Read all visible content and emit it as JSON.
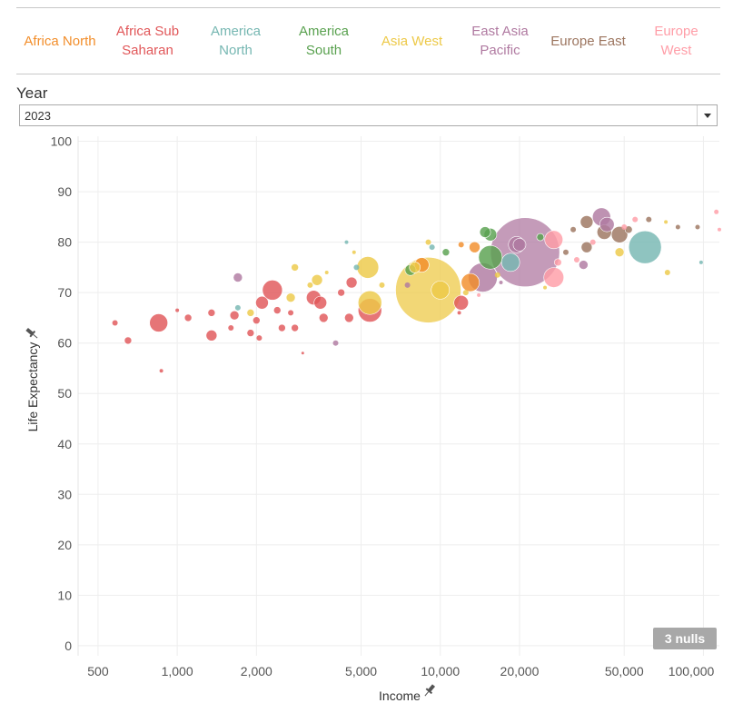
{
  "legend": {
    "items": [
      {
        "label": "Africa North",
        "color": "#f28e2b"
      },
      {
        "label": "Africa Sub Saharan",
        "color": "#e15759"
      },
      {
        "label": "America North",
        "color": "#76b7b2"
      },
      {
        "label": "America South",
        "color": "#59a14f"
      },
      {
        "label": "Asia West",
        "color": "#edc948"
      },
      {
        "label": "East Asia Pacific",
        "color": "#b07aa1"
      },
      {
        "label": "Europe East",
        "color": "#9c755f"
      },
      {
        "label": "Europe West",
        "color": "#ff9da7"
      }
    ]
  },
  "filter": {
    "label": "Year",
    "value": "2023"
  },
  "nulls_label": "3 nulls",
  "chart_data": {
    "type": "scatter",
    "xlabel": "Income",
    "ylabel": "Life Expectancy",
    "x_scale": "log",
    "xlim": [
      420,
      115000
    ],
    "ylim": [
      -2,
      101
    ],
    "x_ticks": [
      500,
      1000,
      2000,
      5000,
      10000,
      20000,
      50000,
      100000
    ],
    "x_tick_labels": [
      "500",
      "1,000",
      "2,000",
      "5,000",
      "10,000",
      "20,000",
      "50,000",
      "100,000"
    ],
    "y_ticks": [
      0,
      10,
      20,
      30,
      40,
      50,
      60,
      70,
      80,
      90,
      100
    ],
    "points": [
      {
        "x": 21000,
        "y": 78,
        "r": 38,
        "region": "East Asia Pacific"
      },
      {
        "x": 9000,
        "y": 70.5,
        "r": 36,
        "region": "Asia West"
      },
      {
        "x": 60000,
        "y": 79,
        "r": 18,
        "region": "America North"
      },
      {
        "x": 14500,
        "y": 73,
        "r": 16,
        "region": "East Asia Pacific"
      },
      {
        "x": 15500,
        "y": 77,
        "r": 13,
        "region": "America South"
      },
      {
        "x": 5400,
        "y": 66.5,
        "r": 13,
        "region": "Africa Sub Saharan"
      },
      {
        "x": 5400,
        "y": 68,
        "r": 13,
        "region": "Asia West"
      },
      {
        "x": 5300,
        "y": 75,
        "r": 12,
        "region": "Asia West"
      },
      {
        "x": 2300,
        "y": 70.5,
        "r": 11,
        "region": "Africa Sub Saharan"
      },
      {
        "x": 27000,
        "y": 73,
        "r": 11,
        "region": "Europe West"
      },
      {
        "x": 10000,
        "y": 70.5,
        "r": 10,
        "region": "Asia West"
      },
      {
        "x": 13000,
        "y": 72,
        "r": 10,
        "region": "Africa North"
      },
      {
        "x": 850,
        "y": 64,
        "r": 10,
        "region": "Africa Sub Saharan"
      },
      {
        "x": 41000,
        "y": 85,
        "r": 10,
        "region": "East Asia Pacific"
      },
      {
        "x": 27000,
        "y": 80.5,
        "r": 10,
        "region": "Europe West"
      },
      {
        "x": 18500,
        "y": 76,
        "r": 10,
        "region": "America North"
      },
      {
        "x": 19500,
        "y": 79.5,
        "r": 9,
        "region": "East Asia Pacific"
      },
      {
        "x": 48000,
        "y": 81.5,
        "r": 9,
        "region": "Europe East"
      },
      {
        "x": 3300,
        "y": 69,
        "r": 8,
        "region": "Africa Sub Saharan"
      },
      {
        "x": 3500,
        "y": 68,
        "r": 7,
        "region": "Africa Sub Saharan"
      },
      {
        "x": 12000,
        "y": 68,
        "r": 8,
        "region": "Africa Sub Saharan"
      },
      {
        "x": 2100,
        "y": 68,
        "r": 7,
        "region": "Africa Sub Saharan"
      },
      {
        "x": 8500,
        "y": 75.5,
        "r": 8,
        "region": "Africa North"
      },
      {
        "x": 42000,
        "y": 82,
        "r": 8,
        "region": "Europe East"
      },
      {
        "x": 43000,
        "y": 83.5,
        "r": 8,
        "region": "East Asia Pacific"
      },
      {
        "x": 36000,
        "y": 84,
        "r": 7,
        "region": "Europe East"
      },
      {
        "x": 36000,
        "y": 79,
        "r": 6,
        "region": "Europe East"
      },
      {
        "x": 20000,
        "y": 79.5,
        "r": 7,
        "region": "East Asia Pacific"
      },
      {
        "x": 15500,
        "y": 81.5,
        "r": 7,
        "region": "America South"
      },
      {
        "x": 14800,
        "y": 82,
        "r": 6,
        "region": "America South"
      },
      {
        "x": 7700,
        "y": 74.5,
        "r": 6,
        "region": "America South"
      },
      {
        "x": 8000,
        "y": 75,
        "r": 6,
        "region": "Asia West"
      },
      {
        "x": 4600,
        "y": 72,
        "r": 6,
        "region": "Africa Sub Saharan"
      },
      {
        "x": 3400,
        "y": 72.5,
        "r": 6,
        "region": "Asia West"
      },
      {
        "x": 1350,
        "y": 61.5,
        "r": 6,
        "region": "Africa Sub Saharan"
      },
      {
        "x": 4500,
        "y": 65,
        "r": 5,
        "region": "Africa Sub Saharan"
      },
      {
        "x": 3600,
        "y": 65,
        "r": 5,
        "region": "Africa Sub Saharan"
      },
      {
        "x": 2700,
        "y": 69,
        "r": 5,
        "region": "Asia West"
      },
      {
        "x": 2400,
        "y": 66.5,
        "r": 4,
        "region": "Africa Sub Saharan"
      },
      {
        "x": 2000,
        "y": 64.5,
        "r": 4,
        "region": "Africa Sub Saharan"
      },
      {
        "x": 1900,
        "y": 66,
        "r": 4,
        "region": "Asia West"
      },
      {
        "x": 1700,
        "y": 73,
        "r": 5,
        "region": "East Asia Pacific"
      },
      {
        "x": 1650,
        "y": 65.5,
        "r": 5,
        "region": "Africa Sub Saharan"
      },
      {
        "x": 1100,
        "y": 65,
        "r": 4,
        "region": "Africa Sub Saharan"
      },
      {
        "x": 650,
        "y": 60.5,
        "r": 4,
        "region": "Africa Sub Saharan"
      },
      {
        "x": 580,
        "y": 64,
        "r": 3,
        "region": "Africa Sub Saharan"
      },
      {
        "x": 870,
        "y": 54.5,
        "r": 2,
        "region": "Africa Sub Saharan"
      },
      {
        "x": 1000,
        "y": 66.5,
        "r": 2,
        "region": "Africa Sub Saharan"
      },
      {
        "x": 1350,
        "y": 66,
        "r": 4,
        "region": "Africa Sub Saharan"
      },
      {
        "x": 2050,
        "y": 61,
        "r": 3,
        "region": "Africa Sub Saharan"
      },
      {
        "x": 2500,
        "y": 63,
        "r": 4,
        "region": "Africa Sub Saharan"
      },
      {
        "x": 2800,
        "y": 63,
        "r": 4,
        "region": "Africa Sub Saharan"
      },
      {
        "x": 1600,
        "y": 63,
        "r": 3,
        "region": "Africa Sub Saharan"
      },
      {
        "x": 1900,
        "y": 62,
        "r": 4,
        "region": "Africa Sub Saharan"
      },
      {
        "x": 3000,
        "y": 58,
        "r": 1.5,
        "region": "Africa Sub Saharan"
      },
      {
        "x": 4000,
        "y": 60,
        "r": 3,
        "region": "East Asia Pacific"
      },
      {
        "x": 4800,
        "y": 75,
        "r": 3,
        "region": "America North"
      },
      {
        "x": 4200,
        "y": 70,
        "r": 4,
        "region": "Africa Sub Saharan"
      },
      {
        "x": 4700,
        "y": 78,
        "r": 2,
        "region": "Asia West"
      },
      {
        "x": 4400,
        "y": 80,
        "r": 2,
        "region": "America North"
      },
      {
        "x": 2800,
        "y": 75,
        "r": 4,
        "region": "Asia West"
      },
      {
        "x": 3700,
        "y": 74,
        "r": 2,
        "region": "Asia West"
      },
      {
        "x": 1700,
        "y": 67,
        "r": 3,
        "region": "America North"
      },
      {
        "x": 9000,
        "y": 80,
        "r": 3,
        "region": "Asia West"
      },
      {
        "x": 9300,
        "y": 79,
        "r": 3,
        "region": "America North"
      },
      {
        "x": 10500,
        "y": 78,
        "r": 4,
        "region": "America South"
      },
      {
        "x": 12000,
        "y": 79.5,
        "r": 3,
        "region": "Africa North"
      },
      {
        "x": 13500,
        "y": 79,
        "r": 6,
        "region": "Africa North"
      },
      {
        "x": 16500,
        "y": 73.5,
        "r": 3,
        "region": "Asia West"
      },
      {
        "x": 17000,
        "y": 72,
        "r": 2,
        "region": "East Asia Pacific"
      },
      {
        "x": 14000,
        "y": 69.5,
        "r": 2,
        "region": "Europe West"
      },
      {
        "x": 25000,
        "y": 71,
        "r": 2,
        "region": "Asia West"
      },
      {
        "x": 24000,
        "y": 81,
        "r": 4,
        "region": "America South"
      },
      {
        "x": 28000,
        "y": 76,
        "r": 4,
        "region": "Europe West"
      },
      {
        "x": 30000,
        "y": 78,
        "r": 3,
        "region": "Europe East"
      },
      {
        "x": 32000,
        "y": 82.5,
        "r": 3,
        "region": "Europe East"
      },
      {
        "x": 35000,
        "y": 75.5,
        "r": 5,
        "region": "East Asia Pacific"
      },
      {
        "x": 33000,
        "y": 76.5,
        "r": 3,
        "region": "Europe West"
      },
      {
        "x": 38000,
        "y": 80,
        "r": 3,
        "region": "Europe West"
      },
      {
        "x": 48000,
        "y": 78,
        "r": 5,
        "region": "Asia West"
      },
      {
        "x": 52000,
        "y": 82.5,
        "r": 4,
        "region": "Europe East"
      },
      {
        "x": 50000,
        "y": 83,
        "r": 3,
        "region": "Europe West"
      },
      {
        "x": 55000,
        "y": 84.5,
        "r": 3,
        "region": "Europe West"
      },
      {
        "x": 62000,
        "y": 84.5,
        "r": 3,
        "region": "Europe East"
      },
      {
        "x": 72000,
        "y": 84,
        "r": 2,
        "region": "Asia West"
      },
      {
        "x": 73000,
        "y": 74,
        "r": 3,
        "region": "Asia West"
      },
      {
        "x": 80000,
        "y": 83,
        "r": 2.5,
        "region": "Europe East"
      },
      {
        "x": 95000,
        "y": 83,
        "r": 2.5,
        "region": "Europe East"
      },
      {
        "x": 98000,
        "y": 76,
        "r": 2,
        "region": "America North"
      },
      {
        "x": 112000,
        "y": 86,
        "r": 2.5,
        "region": "Europe West"
      },
      {
        "x": 115000,
        "y": 82.5,
        "r": 2,
        "region": "Europe West"
      },
      {
        "x": 7500,
        "y": 71.5,
        "r": 3,
        "region": "East Asia Pacific"
      },
      {
        "x": 6000,
        "y": 71.5,
        "r": 3,
        "region": "Asia West"
      },
      {
        "x": 12500,
        "y": 70,
        "r": 3,
        "region": "Asia West"
      },
      {
        "x": 11800,
        "y": 66,
        "r": 2,
        "region": "Africa Sub Saharan"
      },
      {
        "x": 3200,
        "y": 71.5,
        "r": 3,
        "region": "Asia West"
      },
      {
        "x": 2700,
        "y": 66,
        "r": 3,
        "region": "Africa Sub Saharan"
      }
    ]
  }
}
